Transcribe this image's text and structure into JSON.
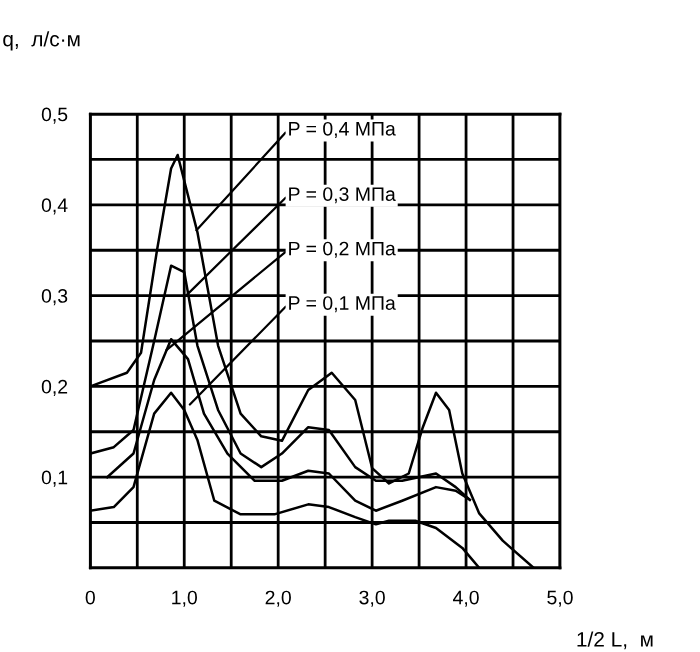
{
  "chart_data": {
    "type": "line",
    "xlabel": "1/2 L,  м",
    "ylabel": "q,  л/с·м",
    "x": [
      0,
      0.39,
      0.54,
      0.71,
      0.86,
      0.93,
      1.14,
      1.36,
      1.6,
      1.82,
      2.04,
      2.32,
      2.57,
      2.82,
      3.0,
      3.18,
      3.39,
      3.54,
      3.68,
      3.82,
      3.96,
      4.14,
      4.39,
      4.72
    ],
    "series": [
      {
        "color": "#000000",
        "values": [
          0.2,
          0.215,
          0.237,
          0.35,
          0.44,
          0.455,
          0.37,
          0.245,
          0.17,
          0.145,
          0.14,
          0.196,
          0.215,
          0.185,
          0.11,
          0.093,
          0.104,
          0.155,
          0.193,
          0.174,
          0.104,
          0.06,
          0.03,
          0
        ]
      },
      {
        "color": "#000000",
        "x": [
          0,
          0.25,
          0.46,
          0.68,
          0.86,
          1.0,
          1.14,
          1.36,
          1.6,
          1.82,
          2.04,
          2.32,
          2.54,
          2.82,
          3.04,
          3.32,
          3.68,
          3.89,
          4.04
        ],
        "values": [
          0.126,
          0.133,
          0.152,
          0.25,
          0.333,
          0.326,
          0.245,
          0.174,
          0.126,
          0.111,
          0.126,
          0.155,
          0.152,
          0.111,
          0.096,
          0.096,
          0.104,
          0.089,
          0.075
        ]
      },
      {
        "color": "#000000",
        "x": [
          0.18,
          0.46,
          0.68,
          0.86,
          1.04,
          1.21,
          1.46,
          1.75,
          2.04,
          2.32,
          2.54,
          2.82,
          3.04,
          3.32,
          3.68,
          3.89,
          4.04
        ],
        "values": [
          0.1,
          0.126,
          0.207,
          0.252,
          0.23,
          0.17,
          0.126,
          0.096,
          0.096,
          0.107,
          0.104,
          0.074,
          0.063,
          0.074,
          0.089,
          0.085,
          0.075
        ]
      },
      {
        "color": "#000000",
        "x": [
          0,
          0.25,
          0.46,
          0.68,
          0.86,
          1.0,
          1.14,
          1.32,
          1.6,
          1.96,
          2.32,
          2.54,
          2.82,
          3.04,
          3.18,
          3.46,
          3.68,
          3.96,
          4.14
        ],
        "values": [
          0.063,
          0.067,
          0.089,
          0.17,
          0.193,
          0.174,
          0.141,
          0.074,
          0.059,
          0.059,
          0.07,
          0.067,
          0.056,
          0.048,
          0.052,
          0.052,
          0.044,
          0.022,
          0
        ]
      }
    ],
    "annotations": [
      {
        "text": "P = 0,4 МПа",
        "x": 1.13,
        "y": 0.372
      },
      {
        "text": "P = 0,3 МПа",
        "x": 1.02,
        "y": 0.3
      },
      {
        "text": "P = 0,2 МПа",
        "x": 0.81,
        "y": 0.24
      },
      {
        "text": "P = 0,1 МПа",
        "x": 1.06,
        "y": 0.18
      }
    ],
    "xlim": [
      0,
      5
    ],
    "ylim": [
      0,
      0.5
    ],
    "xticks": [
      {
        "value": 0,
        "label": "0"
      },
      {
        "value": 0.5,
        "label": null
      },
      {
        "value": 1,
        "label": "1,0"
      },
      {
        "value": 1.5,
        "label": null
      },
      {
        "value": 2,
        "label": "2,0"
      },
      {
        "value": 2.5,
        "label": null
      },
      {
        "value": 3,
        "label": "3,0"
      },
      {
        "value": 3.5,
        "label": null
      },
      {
        "value": 4,
        "label": "4,0"
      },
      {
        "value": 4.5,
        "label": null
      },
      {
        "value": 5,
        "label": "5,0"
      }
    ],
    "yticks": [
      {
        "value": 0,
        "label": null
      },
      {
        "value": 0.05,
        "label": null
      },
      {
        "value": 0.1,
        "label": "0,1"
      },
      {
        "value": 0.15,
        "label": null
      },
      {
        "value": 0.2,
        "label": "0,2"
      },
      {
        "value": 0.25,
        "label": null
      },
      {
        "value": 0.3,
        "label": "0,3"
      },
      {
        "value": 0.35,
        "label": null
      },
      {
        "value": 0.4,
        "label": "0,4"
      },
      {
        "value": 0.45,
        "label": null
      },
      {
        "value": 0.5,
        "label": "0,5"
      }
    ],
    "grid": true
  }
}
